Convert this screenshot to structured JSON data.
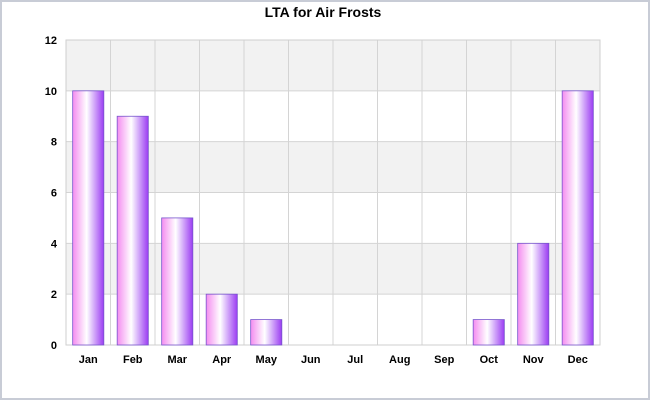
{
  "chart_data": {
    "type": "bar",
    "title": "LTA for Air Frosts",
    "xlabel": "",
    "ylabel": "",
    "categories": [
      "Jan",
      "Feb",
      "Mar",
      "Apr",
      "May",
      "Jun",
      "Jul",
      "Aug",
      "Sep",
      "Oct",
      "Nov",
      "Dec"
    ],
    "values": [
      10,
      9,
      5,
      2,
      1,
      0,
      0,
      0,
      0,
      1,
      4,
      10
    ],
    "ylim": [
      0,
      12
    ],
    "yticks": [
      0,
      2,
      4,
      6,
      8,
      10,
      12
    ],
    "grid": true,
    "bar_gradient": [
      "#f48cf0",
      "#ffffff",
      "#9b3cf2"
    ],
    "bar_border_color": "#7755cc",
    "band_color": "#f2f2f2"
  }
}
